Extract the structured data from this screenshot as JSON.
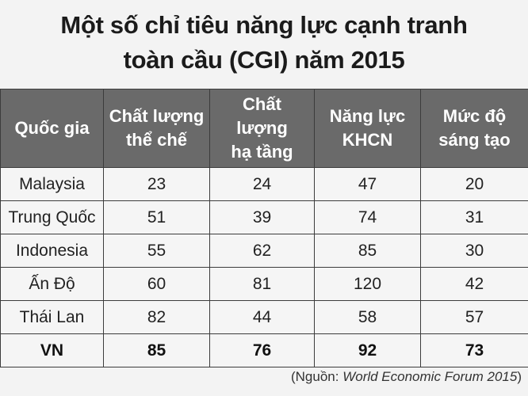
{
  "title": {
    "line1": "Một số chỉ tiêu năng lực cạnh tranh",
    "line2": "toàn cầu (CGI) năm 2015"
  },
  "table": {
    "headers": [
      {
        "lines": [
          "Quốc gia"
        ]
      },
      {
        "lines": [
          "Chất lượng",
          "thể chế"
        ]
      },
      {
        "lines": [
          "Chất lượng",
          "hạ tầng"
        ]
      },
      {
        "lines": [
          "Năng lực",
          "KHCN"
        ]
      },
      {
        "lines": [
          "Mức độ",
          "sáng tạo"
        ]
      }
    ],
    "rows": [
      {
        "country": "Malaysia",
        "values": [
          "23",
          "24",
          "47",
          "20"
        ]
      },
      {
        "country": "Trung Quốc",
        "values": [
          "51",
          "39",
          "74",
          "31"
        ]
      },
      {
        "country": "Indonesia",
        "values": [
          "55",
          "62",
          "85",
          "30"
        ]
      },
      {
        "country": "Ấn Độ",
        "values": [
          "60",
          "81",
          "120",
          "42"
        ]
      },
      {
        "country": "Thái Lan",
        "values": [
          "82",
          "44",
          "58",
          "57"
        ]
      },
      {
        "country": "VN",
        "values": [
          "85",
          "76",
          "92",
          "73"
        ]
      }
    ],
    "highlight_row": "VN"
  },
  "source": {
    "prefix": "(Nguồn: ",
    "name": "World Economic Forum 2015",
    "suffix": ")"
  },
  "colors": {
    "header_bg": "#6a6a6a",
    "header_text": "#ffffff",
    "body_bg": "#f5f5f5",
    "page_bg": "#f3f3f3"
  }
}
